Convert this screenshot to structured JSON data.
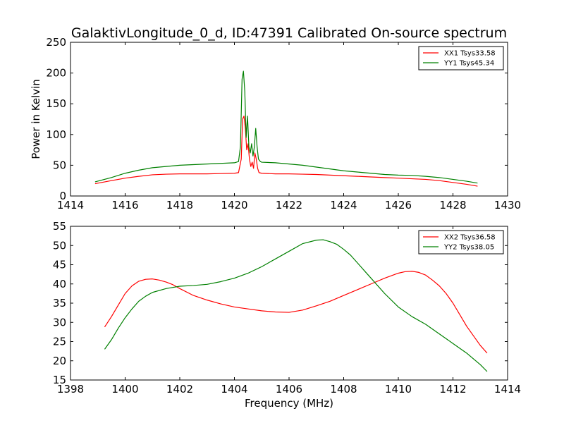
{
  "figure": {
    "title": "GalaktivLongitude_0_d, ID:47391 Calibrated On-source spectrum"
  },
  "chart_data": [
    {
      "type": "line",
      "title": "GalaktivLongitude_0_d, ID:47391 Calibrated On-source spectrum",
      "xlabel": "",
      "ylabel": "Power in Kelvin",
      "xlim": [
        1414,
        1430
      ],
      "ylim": [
        0,
        250
      ],
      "xticks": [
        1414,
        1416,
        1418,
        1420,
        1422,
        1424,
        1426,
        1428,
        1430
      ],
      "yticks": [
        0,
        50,
        100,
        150,
        200,
        250
      ],
      "grid": false,
      "legend": "top-right",
      "series": [
        {
          "name": "XX1 Tsys33.58",
          "color": "#ff0000",
          "x": [
            1414.9,
            1415.5,
            1416.0,
            1416.5,
            1417.0,
            1417.5,
            1418.0,
            1418.5,
            1419.0,
            1419.5,
            1420.0,
            1420.15,
            1420.25,
            1420.3,
            1420.35,
            1420.4,
            1420.45,
            1420.5,
            1420.55,
            1420.6,
            1420.65,
            1420.7,
            1420.75,
            1420.8,
            1420.85,
            1420.9,
            1421.0,
            1421.5,
            1422.0,
            1422.5,
            1423.0,
            1423.5,
            1424.0,
            1424.5,
            1425.0,
            1425.5,
            1426.0,
            1426.5,
            1427.0,
            1427.5,
            1428.0,
            1428.5,
            1428.9
          ],
          "y": [
            20,
            25,
            29,
            32,
            34.5,
            35.5,
            36,
            36,
            36,
            36.5,
            37,
            38,
            60,
            125,
            130,
            110,
            75,
            85,
            60,
            48,
            55,
            45,
            70,
            60,
            45,
            38,
            37,
            36,
            36,
            35.5,
            35,
            34,
            33,
            32,
            31,
            30,
            29,
            28,
            27,
            25,
            22,
            19,
            16
          ]
        },
        {
          "name": "YY1 Tsys45.34",
          "color": "#008000",
          "x": [
            1414.9,
            1415.5,
            1416.0,
            1416.5,
            1417.0,
            1417.5,
            1418.0,
            1418.5,
            1419.0,
            1419.5,
            1420.0,
            1420.15,
            1420.22,
            1420.28,
            1420.33,
            1420.38,
            1420.43,
            1420.48,
            1420.53,
            1420.58,
            1420.63,
            1420.68,
            1420.73,
            1420.78,
            1420.83,
            1420.88,
            1420.95,
            1421.0,
            1421.5,
            1422.0,
            1422.5,
            1423.0,
            1423.5,
            1424.0,
            1424.5,
            1425.0,
            1425.5,
            1426.0,
            1426.5,
            1427.0,
            1427.5,
            1428.0,
            1428.5,
            1428.9
          ],
          "y": [
            23,
            30,
            37,
            42,
            46,
            48,
            50,
            51,
            52,
            53,
            54,
            56,
            80,
            190,
            203,
            170,
            95,
            130,
            80,
            70,
            85,
            65,
            80,
            110,
            80,
            60,
            56,
            55,
            54,
            52,
            50,
            47,
            44,
            41,
            39,
            37,
            35,
            34,
            33.5,
            32,
            30,
            27,
            24,
            21
          ]
        }
      ]
    },
    {
      "type": "line",
      "title": "",
      "xlabel": "Frequency (MHz)",
      "ylabel": "",
      "xlim": [
        1398,
        1414
      ],
      "ylim": [
        15,
        55
      ],
      "xticks": [
        1398,
        1400,
        1402,
        1404,
        1406,
        1408,
        1410,
        1412,
        1414
      ],
      "yticks": [
        15,
        20,
        25,
        30,
        35,
        40,
        45,
        50,
        55
      ],
      "grid": false,
      "legend": "top-right",
      "series": [
        {
          "name": "XX2 Tsys36.58",
          "color": "#ff0000",
          "x": [
            1399.25,
            1399.5,
            1399.75,
            1400.0,
            1400.25,
            1400.5,
            1400.75,
            1401.0,
            1401.25,
            1401.5,
            1401.75,
            1402.0,
            1402.5,
            1403.0,
            1403.5,
            1404.0,
            1404.5,
            1405.0,
            1405.5,
            1406.0,
            1406.5,
            1407.0,
            1407.5,
            1408.0,
            1408.5,
            1409.0,
            1409.5,
            1410.0,
            1410.25,
            1410.5,
            1410.75,
            1411.0,
            1411.25,
            1411.5,
            1411.75,
            1412.0,
            1412.25,
            1412.5,
            1412.75,
            1413.0,
            1413.25
          ],
          "y": [
            28.8,
            31.5,
            34.5,
            37.5,
            39.5,
            40.7,
            41.2,
            41.3,
            41.0,
            40.5,
            39.8,
            38.8,
            37.0,
            35.8,
            34.8,
            34.0,
            33.5,
            33.0,
            32.7,
            32.6,
            33.2,
            34.3,
            35.5,
            37.0,
            38.5,
            40.0,
            41.5,
            42.8,
            43.2,
            43.3,
            43.0,
            42.3,
            41.0,
            39.5,
            37.5,
            35.0,
            32.0,
            29.0,
            26.5,
            24.0,
            22.0
          ]
        },
        {
          "name": "YY2 Tsys38.05",
          "color": "#008000",
          "x": [
            1399.25,
            1399.5,
            1399.75,
            1400.0,
            1400.25,
            1400.5,
            1400.75,
            1401.0,
            1401.5,
            1402.0,
            1402.5,
            1403.0,
            1403.5,
            1404.0,
            1404.5,
            1405.0,
            1405.5,
            1406.0,
            1406.5,
            1407.0,
            1407.25,
            1407.5,
            1407.75,
            1408.0,
            1408.25,
            1408.5,
            1408.75,
            1409.0,
            1409.5,
            1410.0,
            1410.5,
            1411.0,
            1411.5,
            1412.0,
            1412.5,
            1413.0,
            1413.25
          ],
          "y": [
            23.0,
            25.5,
            28.5,
            31.2,
            33.5,
            35.5,
            36.8,
            37.8,
            38.8,
            39.4,
            39.6,
            39.9,
            40.6,
            41.5,
            42.8,
            44.5,
            46.5,
            48.5,
            50.5,
            51.4,
            51.5,
            51.0,
            50.3,
            49.0,
            47.5,
            45.5,
            43.5,
            41.5,
            37.5,
            34.0,
            31.5,
            29.5,
            27.0,
            24.5,
            22.0,
            19.0,
            17.2
          ]
        }
      ]
    }
  ]
}
